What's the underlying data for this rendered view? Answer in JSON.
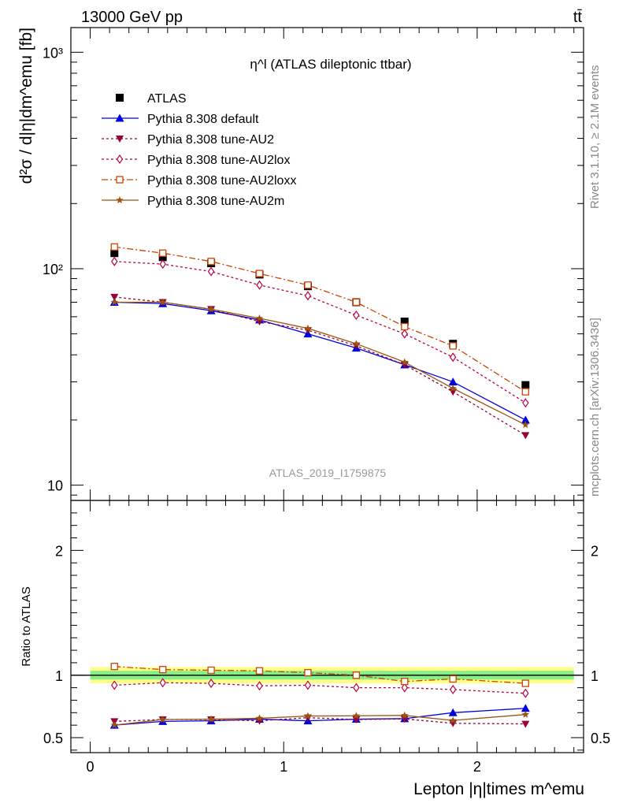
{
  "header": {
    "energy_label": "13000 GeV pp",
    "process_label": "tt̄"
  },
  "side_labels": {
    "rivet": "Rivet 3.1.10, ≥ 2.1M events",
    "mcplots": "mcplots.cern.ch [arXiv:1306.3436]"
  },
  "colors": {
    "atlas": "#000000",
    "default": "#0000dd",
    "au2": "#990033",
    "au2lox": "#bb0044",
    "au2loxx": "#cc4400",
    "au2m": "#995511",
    "band_inner": "#88ee88",
    "band_outer": "#ffff88"
  },
  "chart_data": {
    "type": "line",
    "title": "η^l (ATLAS dileptonic ttbar)",
    "analysis_id": "ATLAS_2019_I1759875",
    "xlabel": "Lepton |η|times m^emu",
    "ylabel": "d²σ / d|η|dm^emu [fb]",
    "ratio_ylabel": "Ratio to ATLAS",
    "x": [
      0.125,
      0.375,
      0.625,
      0.875,
      1.125,
      1.375,
      1.625,
      1.875,
      2.25
    ],
    "xlim": [
      -0.1,
      2.55
    ],
    "ylim": [
      8.5,
      1300
    ],
    "log_y": true,
    "ratio_ylim": [
      0.38,
      2.4
    ],
    "x_ticks": [
      0,
      1,
      2
    ],
    "y_ticks": [
      10,
      100,
      1000
    ],
    "y_tick_labels": [
      "10",
      "10²",
      "10³"
    ],
    "ratio_ticks": [
      0.5,
      1,
      2
    ],
    "ratio_tick_labels": [
      "0.5",
      "1",
      "2"
    ],
    "legend_position": "top-left",
    "band_inner_frac": 0.035,
    "band_outer_frac": 0.065,
    "series": [
      {
        "name": "ATLAS",
        "color": "#000000",
        "marker": "square-filled",
        "dash": "",
        "line": false,
        "values": [
          118,
          113,
          106,
          94,
          83,
          70,
          57,
          45,
          29
        ],
        "ratio": [
          1,
          1,
          1,
          1,
          1,
          1,
          1,
          1,
          1
        ]
      },
      {
        "name": "Pythia 8.308 default",
        "color": "#0000dd",
        "marker": "triangle-up-filled",
        "dash": "",
        "line": true,
        "values": [
          70,
          69,
          64,
          58,
          50,
          43,
          36,
          30,
          20
        ],
        "ratio": [
          0.6,
          0.63,
          0.635,
          0.648,
          0.635,
          0.648,
          0.652,
          0.7,
          0.735
        ]
      },
      {
        "name": "Pythia 8.308 tune-AU2",
        "color": "#990033",
        "marker": "triangle-down-filled",
        "dash": "3,3",
        "line": true,
        "values": [
          74,
          70,
          65,
          57,
          52,
          44,
          36,
          27,
          17
        ],
        "ratio": [
          0.63,
          0.645,
          0.645,
          0.635,
          0.66,
          0.645,
          0.65,
          0.615,
          0.61
        ]
      },
      {
        "name": "Pythia 8.308 tune-AU2lox",
        "color": "#bb0044",
        "marker": "diamond-open",
        "dash": "3,3",
        "line": true,
        "values": [
          108,
          105,
          97,
          84,
          75,
          61,
          50,
          39,
          24
        ],
        "ratio": [
          0.92,
          0.94,
          0.935,
          0.915,
          0.92,
          0.9,
          0.9,
          0.885,
          0.855
        ]
      },
      {
        "name": "Pythia 8.308 tune-AU2loxx",
        "color": "#cc4400",
        "marker": "square-open",
        "dash": "8,3,2,3",
        "line": true,
        "values": [
          126,
          118,
          108,
          95,
          84,
          70,
          54,
          44,
          27
        ],
        "ratio": [
          1.07,
          1.045,
          1.04,
          1.035,
          1.02,
          1.0,
          0.95,
          0.97,
          0.935
        ]
      },
      {
        "name": "Pythia 8.308 tune-AU2m",
        "color": "#995511",
        "marker": "star",
        "dash": "",
        "line": true,
        "values": [
          70,
          70,
          65,
          59,
          53,
          45,
          37,
          28,
          19
        ],
        "ratio": [
          0.6,
          0.645,
          0.648,
          0.655,
          0.673,
          0.675,
          0.678,
          0.638,
          0.685
        ]
      }
    ]
  }
}
